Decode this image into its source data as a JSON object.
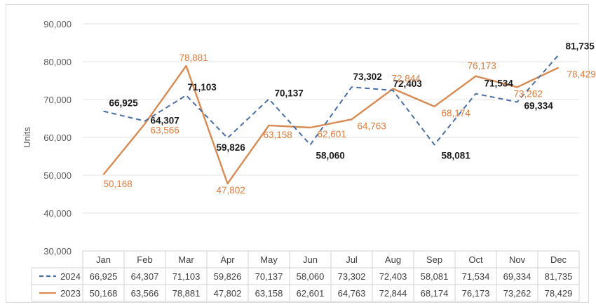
{
  "chart_data": {
    "type": "line",
    "title": "",
    "ylabel": "Units",
    "xlabel": "",
    "ylim": [
      30000,
      90000
    ],
    "yticks": [
      30000,
      40000,
      50000,
      60000,
      70000,
      80000,
      90000
    ],
    "ytick_labels": [
      "30,000",
      "40,000",
      "50,000",
      "60,000",
      "70,000",
      "80,000",
      "90,000"
    ],
    "categories": [
      "Jan",
      "Feb",
      "Mar",
      "Apr",
      "May",
      "Jun",
      "Jul",
      "Aug",
      "Sep",
      "Oct",
      "Nov",
      "Dec"
    ],
    "legend_placement": "data-table",
    "grid": true,
    "series": [
      {
        "name": "2024",
        "style": "dashed",
        "color": "#4a6fa5",
        "values": [
          66925,
          64307,
          71103,
          59826,
          70137,
          58060,
          73302,
          72403,
          58081,
          71534,
          69334,
          81735
        ],
        "labels": [
          "66,925",
          "64,307",
          "71,103",
          "59,826",
          "70,137",
          "58,060",
          "73,302",
          "72,403",
          "58,081",
          "71,534",
          "69,334",
          "81,735"
        ]
      },
      {
        "name": "2023",
        "style": "solid",
        "color": "#d98a52",
        "values": [
          50168,
          63566,
          78881,
          47802,
          63158,
          62601,
          64763,
          72844,
          68174,
          76173,
          73262,
          78429
        ],
        "labels": [
          "50,168",
          "63,566",
          "78,881",
          "47,802",
          "63,158",
          "62,601",
          "64,763",
          "72,844",
          "68,174",
          "76,173",
          "73,262",
          "78,429"
        ]
      }
    ]
  }
}
